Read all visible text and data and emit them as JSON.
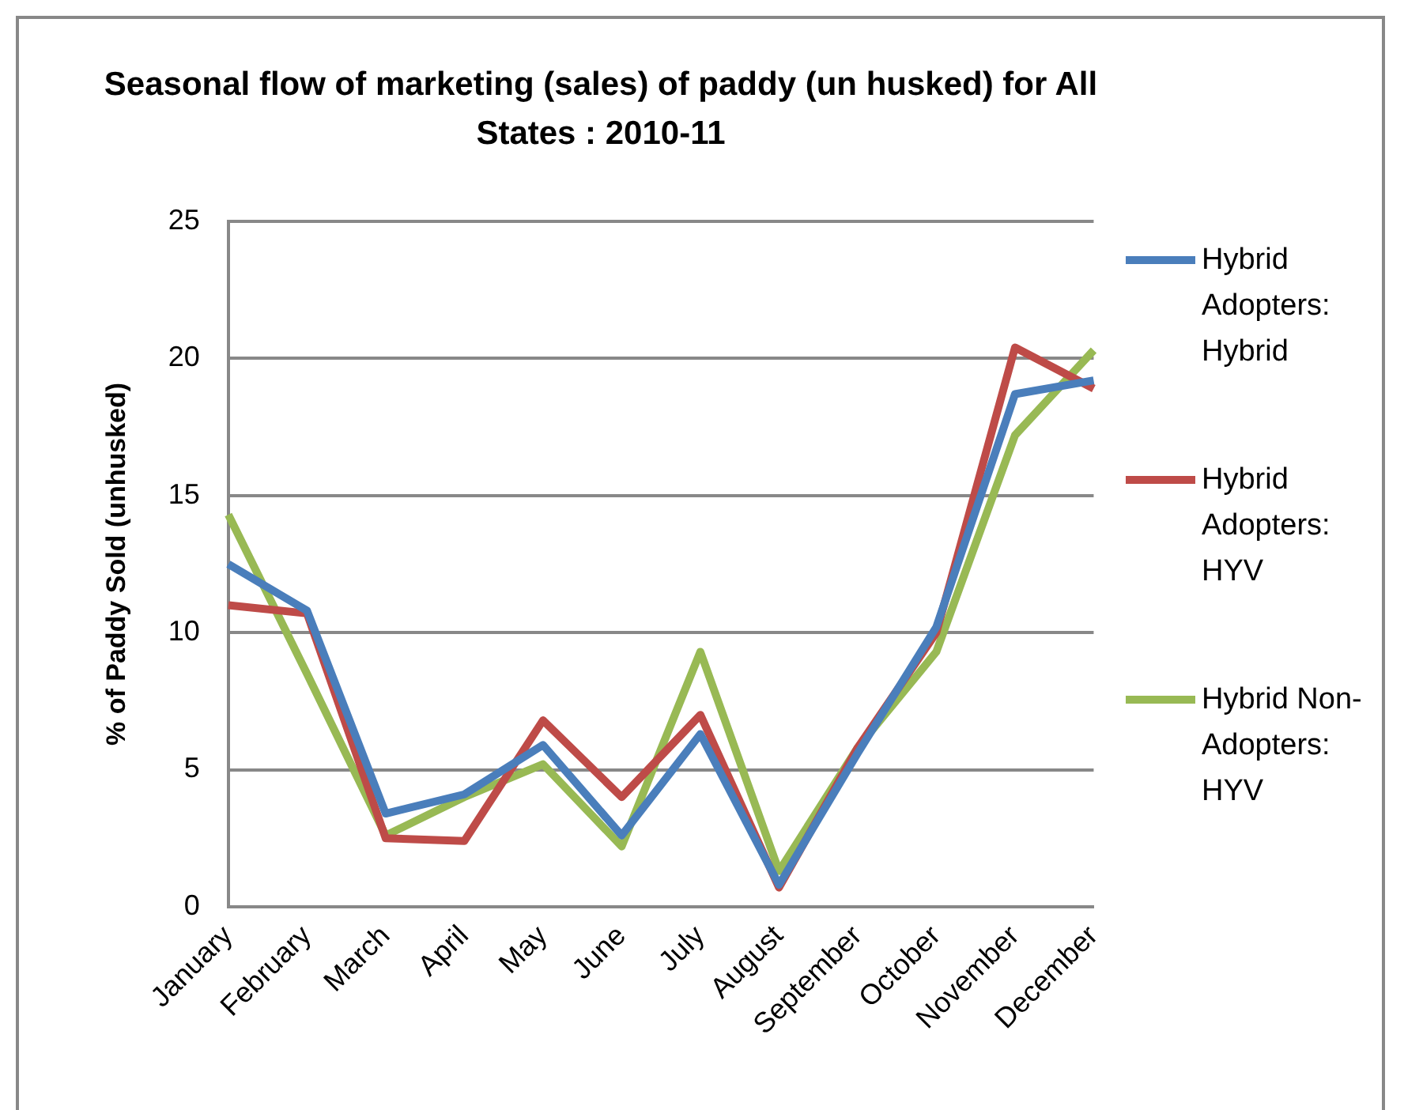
{
  "chart_data": {
    "type": "line",
    "title": "Seasonal flow of marketing (sales) of paddy (un husked) for All States : 2010-11",
    "ylabel": "% of Paddy Sold (unhusked)",
    "categories": [
      "January",
      "February",
      "March",
      "April",
      "May",
      "June",
      "July",
      "August",
      "September",
      "October",
      "November",
      "December"
    ],
    "series": [
      {
        "name": "Hybrid Adopters: Hybrid",
        "color": "#4a7ebb",
        "values": [
          12.5,
          10.8,
          3.4,
          4.1,
          5.9,
          2.6,
          6.3,
          0.8,
          5.6,
          10.2,
          18.7,
          19.2
        ]
      },
      {
        "name": "Hybrid Adopters: HYV",
        "color": "#be4b48",
        "values": [
          11.0,
          10.7,
          2.5,
          2.4,
          6.8,
          4.0,
          7.0,
          0.7,
          5.8,
          10.0,
          20.4,
          18.9
        ]
      },
      {
        "name": "Hybrid Non-Adopters: HYV",
        "color": "#98b954",
        "values": [
          14.3,
          8.5,
          2.6,
          4.0,
          5.2,
          2.2,
          9.3,
          1.3,
          5.8,
          9.3,
          17.2,
          20.3
        ]
      }
    ],
    "ylim": [
      0,
      25
    ],
    "yticks": [
      0,
      5,
      10,
      15,
      20,
      25
    ],
    "grid": "y",
    "legend": "right",
    "marker": "none",
    "line_style": "solid"
  }
}
